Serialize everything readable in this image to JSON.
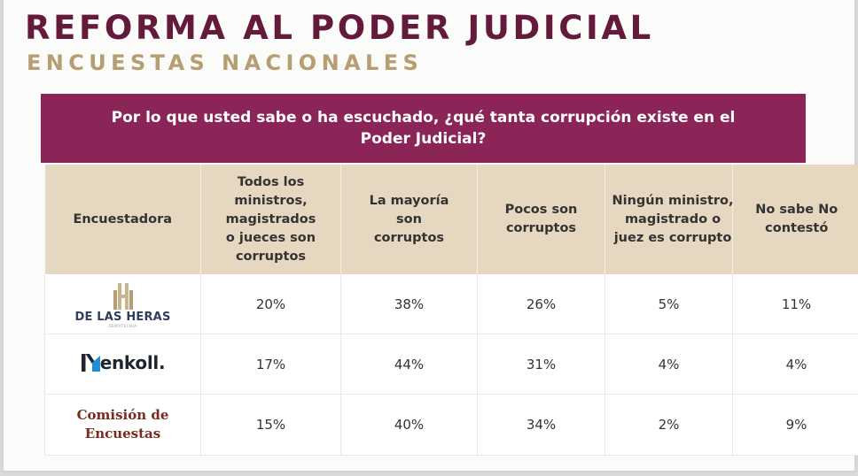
{
  "header": {
    "title": "REFORMA AL PODER JUDICIAL",
    "subtitle": "ENCUESTAS NACIONALES"
  },
  "question": "Por lo que usted sabe o ha escuchado, ¿qué tanta corrupción existe en el Poder Judicial?",
  "table": {
    "columns": [
      "Encuestadora",
      "Todos los ministros, magistrados o jueces son corruptos",
      "La mayoría son corruptos",
      "Pocos son corruptos",
      "Ningún ministro, magistrado o juez es corrupto",
      "No sabe No contestó"
    ],
    "rows": [
      {
        "pollster": "DE LAS HERAS",
        "pollster_tagline": "DEMOTECNIA",
        "pollster_logo": "de-las-heras-logo",
        "values": [
          "20%",
          "38%",
          "26%",
          "5%",
          "11%"
        ]
      },
      {
        "pollster": "enkoll.",
        "pollster_logo": "enkoll-logo",
        "values": [
          "17%",
          "44%",
          "31%",
          "4%",
          "4%"
        ]
      },
      {
        "pollster": "Comisión de Encuestas",
        "pollster_logo": "comision-de-encuestas-logo",
        "values": [
          "15%",
          "40%",
          "34%",
          "2%",
          "9%"
        ]
      }
    ]
  },
  "colors": {
    "title": "#641a3a",
    "subtitle": "#b69e72",
    "question_bar": "#8c2557",
    "header_row": "#e6d8c0"
  }
}
